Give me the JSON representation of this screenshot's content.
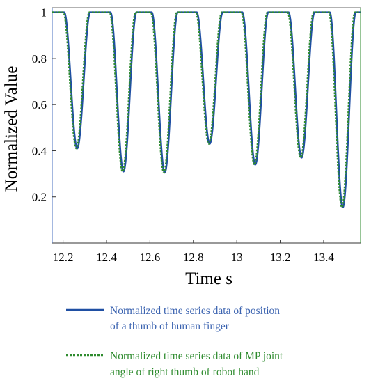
{
  "chart_data": {
    "type": "line",
    "title": "",
    "xlabel": "Time s",
    "ylabel": "Normalized  Value",
    "xlim": [
      12.15,
      13.57
    ],
    "ylim": [
      0.0,
      1.02
    ],
    "xticks": [
      "12.2",
      "12.4",
      "12.6",
      "12.8",
      "13",
      "13.2",
      "13.4"
    ],
    "yticks": [
      "0.2",
      "0.4",
      "0.6",
      "0.8",
      "1"
    ],
    "grid": false,
    "legend_position": "below",
    "colors": {
      "human": "#1f4fa3",
      "robot": "#2e8b2e"
    },
    "dip_centers": [
      12.265,
      12.478,
      12.668,
      12.875,
      13.085,
      13.298,
      13.488
    ],
    "dip_minima": [
      0.41,
      0.31,
      0.305,
      0.43,
      0.34,
      0.37,
      0.155
    ],
    "series": [
      {
        "name": "Normalized time series data of position of a thumb of human finger",
        "name_lines": [
          "Normalized time series data of position",
          "of a thumb of human finger"
        ],
        "color": "#1f4fa3",
        "style": "solid"
      },
      {
        "name": "Normalized time series data of  MP joint angle of  right thumb of robot hand",
        "name_lines": [
          "Normalized time series data of  MP joint",
          "angle of  right thumb of robot hand"
        ],
        "color": "#2e8b2e",
        "style": "dotted"
      }
    ]
  }
}
